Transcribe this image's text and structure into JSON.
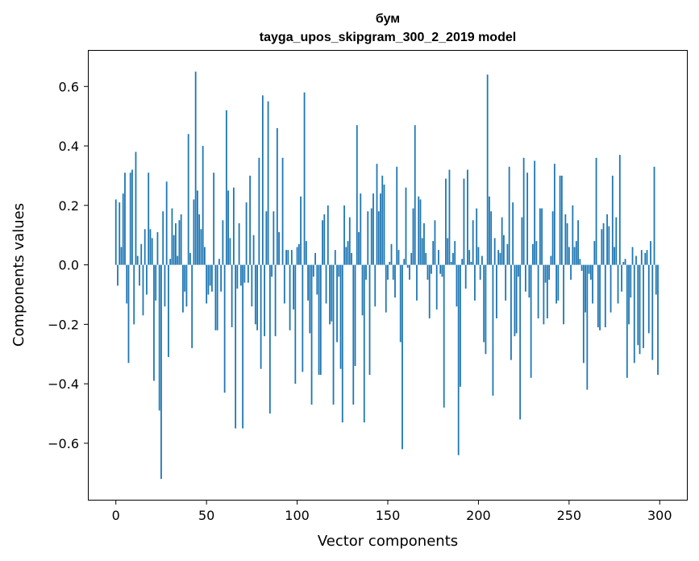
{
  "chart_data": {
    "type": "bar",
    "title": "бум",
    "subtitle": "tayga_upos_skipgram_300_2_2019 model",
    "xlabel": "Vector components",
    "ylabel": "Components values",
    "xlim": [
      -15,
      315
    ],
    "ylim": [
      -0.79,
      0.72
    ],
    "xticks": [
      0,
      50,
      100,
      150,
      200,
      250,
      300
    ],
    "xtick_labels": [
      "0",
      "50",
      "100",
      "150",
      "200",
      "250",
      "300"
    ],
    "yticks": [
      -0.6,
      -0.4,
      -0.2,
      0.0,
      0.2,
      0.4,
      0.6
    ],
    "ytick_labels": [
      "−0.6",
      "−0.4",
      "−0.2",
      "0.0",
      "0.2",
      "0.4",
      "0.6"
    ],
    "grid": false,
    "bar_color": "#1f77b4",
    "values": [
      0.22,
      -0.07,
      0.21,
      0.06,
      0.24,
      0.31,
      -0.13,
      -0.33,
      0.31,
      0.32,
      -0.2,
      0.38,
      0.03,
      -0.07,
      0.07,
      -0.17,
      0.12,
      -0.1,
      0.31,
      0.12,
      0.09,
      -0.39,
      -0.12,
      0.11,
      -0.49,
      -0.72,
      0.18,
      -0.14,
      0.28,
      -0.31,
      0.02,
      0.19,
      0.1,
      0.14,
      0.03,
      0.15,
      0.17,
      -0.16,
      -0.09,
      -0.14,
      0.44,
      0.04,
      -0.28,
      0.22,
      0.65,
      0.25,
      0.17,
      0.12,
      0.4,
      0.06,
      -0.13,
      -0.1,
      -0.07,
      -0.09,
      0.31,
      -0.22,
      -0.22,
      0.02,
      -0.09,
      0.15,
      -0.43,
      0.52,
      0.25,
      0.09,
      -0.21,
      0.26,
      -0.55,
      -0.08,
      0.14,
      -0.07,
      -0.55,
      -0.06,
      0.21,
      -0.06,
      0.3,
      -0.14,
      0.1,
      -0.2,
      -0.22,
      0.36,
      -0.35,
      0.57,
      -0.24,
      0.18,
      0.55,
      -0.5,
      -0.04,
      0.18,
      -0.24,
      0.46,
      0.11,
      0.0,
      0.36,
      -0.13,
      0.05,
      0.05,
      -0.22,
      0.05,
      -0.15,
      -0.4,
      0.06,
      0.07,
      0.23,
      -0.36,
      0.58,
      0.08,
      -0.12,
      -0.23,
      -0.47,
      -0.04,
      0.04,
      -0.1,
      -0.37,
      -0.37,
      0.15,
      0.17,
      -0.13,
      0.2,
      -0.2,
      -0.19,
      -0.47,
      0.05,
      -0.26,
      -0.04,
      -0.35,
      -0.53,
      0.2,
      0.06,
      0.08,
      0.16,
      0.04,
      -0.47,
      -0.34,
      0.47,
      0.11,
      0.24,
      -0.17,
      -0.53,
      -0.05,
      0.18,
      -0.37,
      0.19,
      0.24,
      -0.14,
      0.34,
      0.18,
      0.24,
      0.3,
      0.27,
      -0.16,
      -0.05,
      0.01,
      0.07,
      -0.05,
      -0.11,
      0.33,
      0.05,
      -0.26,
      -0.62,
      0.02,
      0.26,
      -0.01,
      -0.05,
      0.04,
      0.19,
      0.47,
      -0.12,
      0.23,
      0.22,
      0.09,
      0.14,
      0.04,
      -0.05,
      -0.18,
      -0.03,
      0.08,
      0.15,
      -0.15,
      0.05,
      -0.03,
      -0.04,
      -0.48,
      0.29,
      0.09,
      0.32,
      0.01,
      0.04,
      0.08,
      -0.14,
      -0.64,
      -0.41,
      0.02,
      0.29,
      -0.08,
      0.32,
      0.05,
      0.01,
      0.15,
      -0.12,
      0.19,
      0.06,
      -0.05,
      0.03,
      -0.26,
      -0.3,
      0.64,
      0.23,
      0.18,
      -0.44,
      0.09,
      -0.18,
      0.05,
      0.04,
      0.16,
      0.1,
      -0.12,
      0.07,
      0.33,
      -0.32,
      0.21,
      -0.24,
      -0.23,
      -0.04,
      -0.52,
      0.16,
      0.36,
      -0.09,
      0.31,
      -0.11,
      -0.38,
      0.07,
      0.35,
      0.08,
      -0.18,
      0.19,
      0.19,
      -0.2,
      -0.06,
      -0.18,
      -0.05,
      0.03,
      0.18,
      0.34,
      -0.13,
      -0.12,
      0.3,
      0.3,
      -0.2,
      0.17,
      0.14,
      0.06,
      -0.05,
      0.2,
      0.06,
      0.08,
      0.15,
      0.02,
      -0.02,
      -0.33,
      -0.16,
      -0.42,
      -0.03,
      -0.05,
      -0.13,
      0.08,
      0.36,
      -0.21,
      -0.22,
      0.12,
      0.14,
      -0.21,
      0.17,
      0.13,
      -0.16,
      0.3,
      0.06,
      0.16,
      -0.13,
      0.37,
      -0.09,
      0.01,
      0.02,
      -0.38,
      -0.2,
      -0.11,
      0.06,
      -0.33,
      0.03,
      -0.27,
      -0.3,
      0.05,
      -0.28,
      0.04,
      0.05,
      -0.23,
      0.08,
      -0.32,
      0.33,
      -0.1,
      -0.37
    ]
  }
}
